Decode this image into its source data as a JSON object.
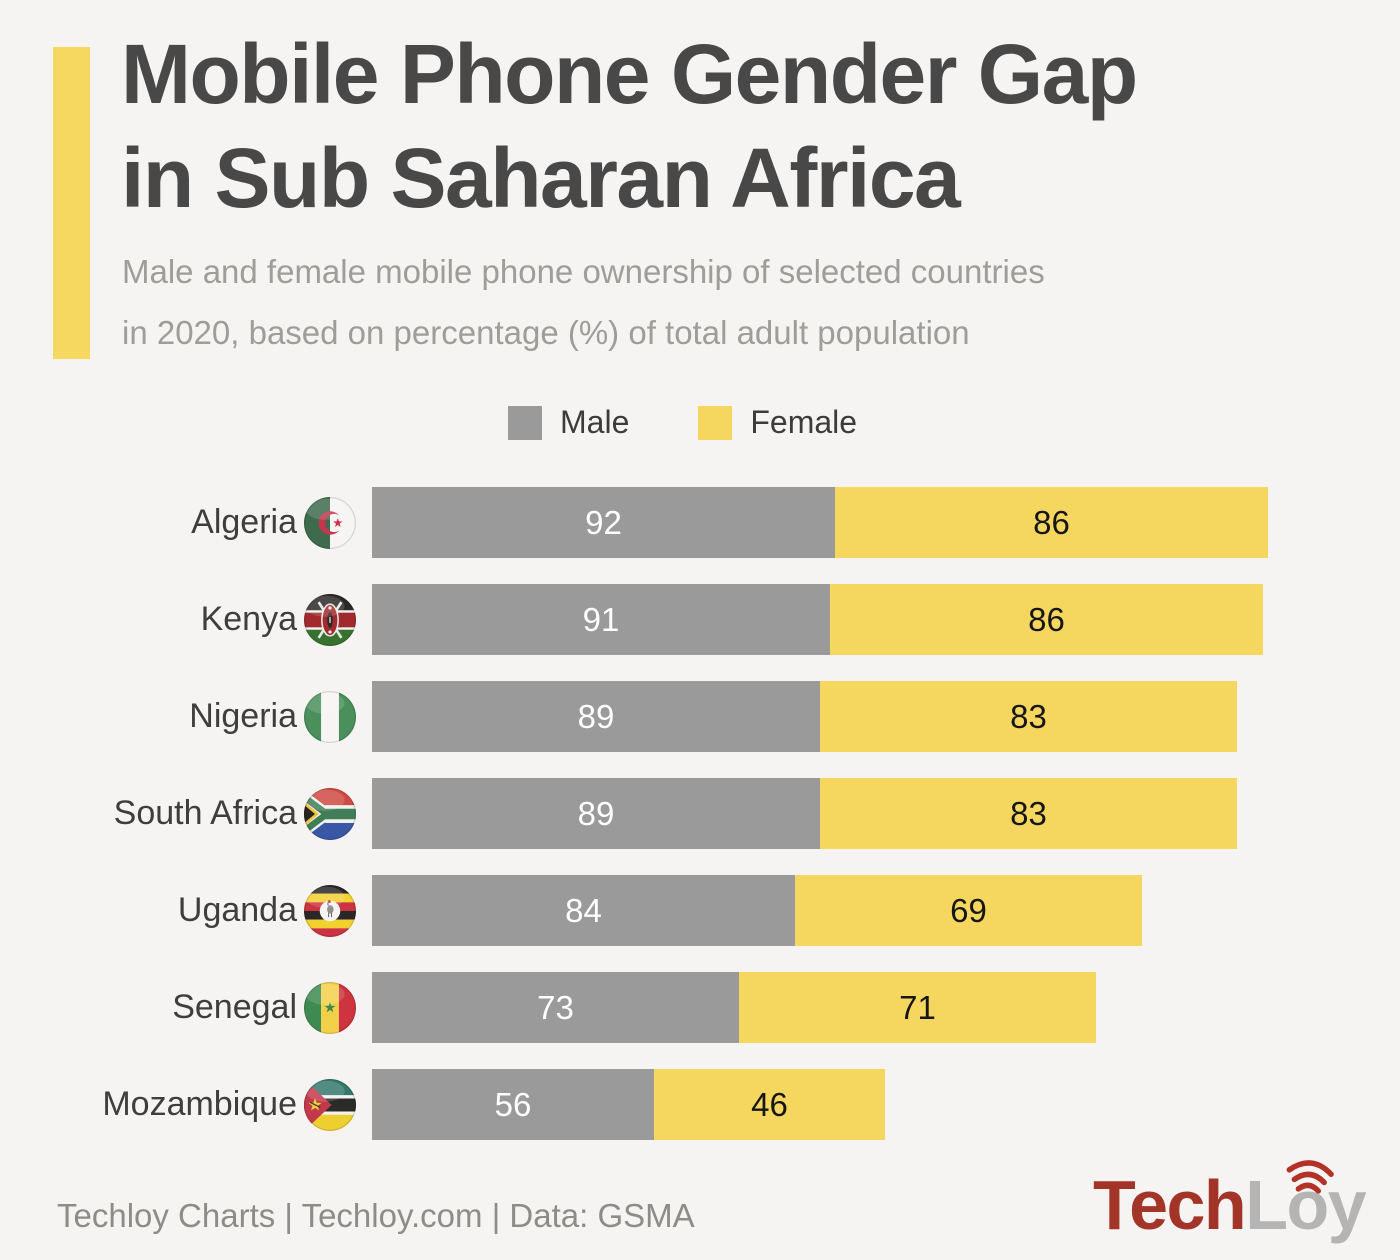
{
  "header": {
    "title": "Mobile Phone Gender Gap\nin Sub Saharan Africa",
    "subtitle": "Male and female mobile phone ownership of selected countries\nin 2020, based on percentage (%) of total adult population"
  },
  "legend": {
    "items": [
      {
        "label": "Male",
        "color": "#9a9a9a"
      },
      {
        "label": "Female",
        "color": "#f5d65e"
      }
    ]
  },
  "chart_data": {
    "type": "bar",
    "variant": "horizontal-stacked",
    "unit": "percent of total adult population",
    "year": "2020",
    "categories": [
      "Algeria",
      "Kenya",
      "Nigeria",
      "South Africa",
      "Uganda",
      "Senegal",
      "Mozambique"
    ],
    "flags": [
      "algeria-flag",
      "kenya-flag",
      "nigeria-flag",
      "south-africa-flag",
      "uganda-flag",
      "senegal-flag",
      "mozambique-flag"
    ],
    "series": [
      {
        "name": "Male",
        "color": "#9a9a9a",
        "values": [
          92,
          91,
          89,
          89,
          84,
          73,
          56
        ]
      },
      {
        "name": "Female",
        "color": "#f5d65e",
        "values": [
          86,
          86,
          83,
          83,
          69,
          71,
          46
        ]
      }
    ],
    "legend_position": "top",
    "grid": false
  },
  "footer": {
    "credit": "Techloy Charts | Techloy.com | Data: GSMA",
    "logo": {
      "tech": "Tech",
      "loy": "Loy",
      "icon": "signal-arcs-icon"
    }
  },
  "colors": {
    "background": "#f5f4f2",
    "accent_yellow": "#f6d75f",
    "male_gray": "#9a9a9a",
    "female_yellow": "#f5d65e",
    "title_text": "#484848",
    "subtitle_text": "#9d9d9a",
    "credit_text": "#8c8c88",
    "logo_red": "#a23428",
    "logo_gray": "#b4b4b4"
  }
}
